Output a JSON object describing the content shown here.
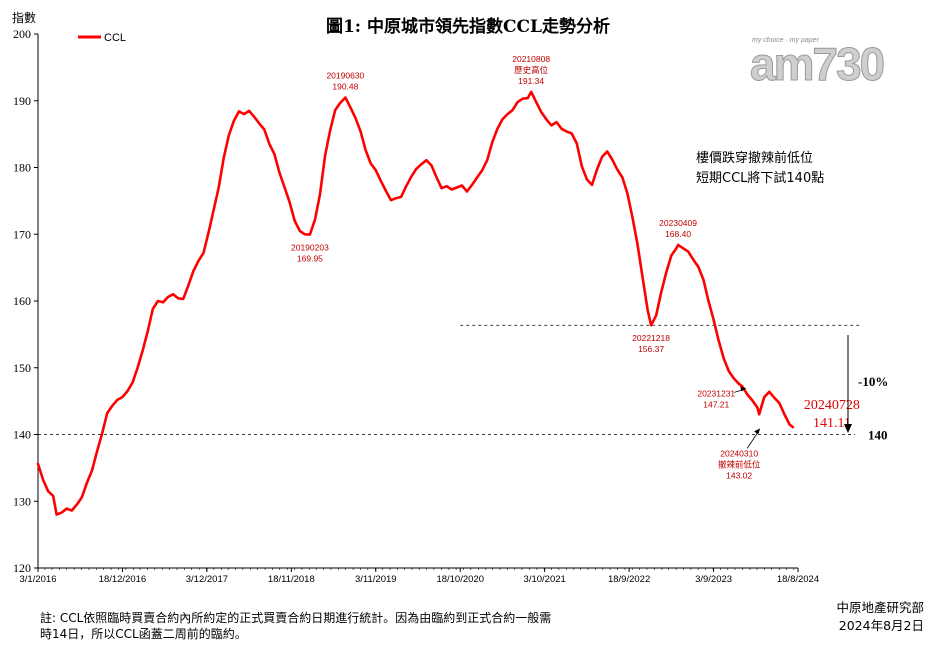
{
  "chart_data": {
    "type": "line",
    "title": "圖1: 中原城市領先指數CCL走勢分析",
    "ylabel": "指數",
    "ylim": [
      120,
      200
    ],
    "yticks": [
      120,
      130,
      140,
      150,
      160,
      170,
      180,
      190,
      200
    ],
    "xlim": [
      "2016-01-03",
      "2024-08-18"
    ],
    "xticks": [
      {
        "date": "2016-01-03",
        "label": "3/1/2016"
      },
      {
        "date": "2016-12-18",
        "label": "18/12/2016"
      },
      {
        "date": "2017-12-03",
        "label": "3/12/2017"
      },
      {
        "date": "2018-11-18",
        "label": "18/11/2018"
      },
      {
        "date": "2019-11-03",
        "label": "3/11/2019"
      },
      {
        "date": "2020-10-18",
        "label": "18/10/2020"
      },
      {
        "date": "2021-10-03",
        "label": "3/10/2021"
      },
      {
        "date": "2022-09-18",
        "label": "18/9/2022"
      },
      {
        "date": "2023-09-03",
        "label": "3/9/2023"
      },
      {
        "date": "2024-08-18",
        "label": "18/8/2024"
      }
    ],
    "legend_position": "top-left",
    "grid": false,
    "series": [
      {
        "name": "CCL",
        "color": "#ff0000",
        "points": [
          [
            "2016-01-03",
            135.6
          ],
          [
            "2016-01-24",
            133.2
          ],
          [
            "2016-02-14",
            131.5
          ],
          [
            "2016-03-06",
            130.8
          ],
          [
            "2016-03-20",
            128.0
          ],
          [
            "2016-04-10",
            128.3
          ],
          [
            "2016-05-01",
            128.9
          ],
          [
            "2016-05-22",
            128.6
          ],
          [
            "2016-06-12",
            129.5
          ],
          [
            "2016-07-03",
            130.6
          ],
          [
            "2016-07-24",
            132.8
          ],
          [
            "2016-08-14",
            134.6
          ],
          [
            "2016-09-04",
            137.5
          ],
          [
            "2016-09-25",
            140.2
          ],
          [
            "2016-10-16",
            143.2
          ],
          [
            "2016-11-06",
            144.3
          ],
          [
            "2016-11-27",
            145.2
          ],
          [
            "2016-12-18",
            145.6
          ],
          [
            "2017-01-08",
            146.5
          ],
          [
            "2017-01-29",
            147.8
          ],
          [
            "2017-02-19",
            150.0
          ],
          [
            "2017-03-12",
            152.6
          ],
          [
            "2017-04-02",
            155.5
          ],
          [
            "2017-04-23",
            158.8
          ],
          [
            "2017-05-14",
            160.0
          ],
          [
            "2017-06-04",
            159.8
          ],
          [
            "2017-06-25",
            160.6
          ],
          [
            "2017-07-16",
            161.0
          ],
          [
            "2017-08-06",
            160.4
          ],
          [
            "2017-08-27",
            160.3
          ],
          [
            "2017-09-17",
            162.3
          ],
          [
            "2017-10-08",
            164.5
          ],
          [
            "2017-10-29",
            166.0
          ],
          [
            "2017-11-19",
            167.2
          ],
          [
            "2017-12-10",
            170.3
          ],
          [
            "2017-12-31",
            173.6
          ],
          [
            "2018-01-21",
            177.0
          ],
          [
            "2018-02-11",
            181.5
          ],
          [
            "2018-03-04",
            184.8
          ],
          [
            "2018-03-25",
            187.0
          ],
          [
            "2018-04-15",
            188.4
          ],
          [
            "2018-05-06",
            188.0
          ],
          [
            "2018-05-27",
            188.5
          ],
          [
            "2018-06-17",
            187.6
          ],
          [
            "2018-07-08",
            186.6
          ],
          [
            "2018-07-29",
            185.7
          ],
          [
            "2018-08-19",
            183.5
          ],
          [
            "2018-09-09",
            182.0
          ],
          [
            "2018-09-30",
            179.2
          ],
          [
            "2018-10-21",
            177.0
          ],
          [
            "2018-11-11",
            174.8
          ],
          [
            "2018-12-02",
            172.0
          ],
          [
            "2018-12-23",
            170.5
          ],
          [
            "2019-01-13",
            170.0
          ],
          [
            "2019-02-03",
            169.95
          ],
          [
            "2019-02-24",
            172.2
          ],
          [
            "2019-03-17",
            176.0
          ],
          [
            "2019-04-07",
            181.8
          ],
          [
            "2019-04-28",
            185.6
          ],
          [
            "2019-05-19",
            188.6
          ],
          [
            "2019-06-09",
            189.7
          ],
          [
            "2019-06-30",
            190.48
          ],
          [
            "2019-07-21",
            189.0
          ],
          [
            "2019-08-11",
            187.4
          ],
          [
            "2019-09-01",
            185.4
          ],
          [
            "2019-09-22",
            182.6
          ],
          [
            "2019-10-13",
            180.6
          ],
          [
            "2019-11-03",
            179.6
          ],
          [
            "2019-11-24",
            178.0
          ],
          [
            "2019-12-15",
            176.5
          ],
          [
            "2020-01-05",
            175.1
          ],
          [
            "2020-01-26",
            175.4
          ],
          [
            "2020-02-16",
            175.6
          ],
          [
            "2020-03-08",
            177.2
          ],
          [
            "2020-03-29",
            178.6
          ],
          [
            "2020-04-19",
            179.8
          ],
          [
            "2020-05-10",
            180.5
          ],
          [
            "2020-05-31",
            181.1
          ],
          [
            "2020-06-21",
            180.3
          ],
          [
            "2020-07-12",
            178.5
          ],
          [
            "2020-08-02",
            176.9
          ],
          [
            "2020-08-23",
            177.2
          ],
          [
            "2020-09-13",
            176.7
          ],
          [
            "2020-10-04",
            177.0
          ],
          [
            "2020-10-25",
            177.3
          ],
          [
            "2020-11-15",
            176.4
          ],
          [
            "2020-12-06",
            177.4
          ],
          [
            "2020-12-27",
            178.5
          ],
          [
            "2021-01-17",
            179.6
          ],
          [
            "2021-02-07",
            181.1
          ],
          [
            "2021-02-28",
            183.8
          ],
          [
            "2021-03-21",
            185.8
          ],
          [
            "2021-04-11",
            187.2
          ],
          [
            "2021-05-02",
            188.0
          ],
          [
            "2021-05-23",
            188.6
          ],
          [
            "2021-06-13",
            189.8
          ],
          [
            "2021-07-04",
            190.3
          ],
          [
            "2021-07-25",
            190.4
          ],
          [
            "2021-08-08",
            191.34
          ],
          [
            "2021-08-29",
            189.8
          ],
          [
            "2021-09-19",
            188.3
          ],
          [
            "2021-10-10",
            187.2
          ],
          [
            "2021-10-31",
            186.3
          ],
          [
            "2021-11-21",
            186.8
          ],
          [
            "2021-12-12",
            185.8
          ],
          [
            "2022-01-02",
            185.4
          ],
          [
            "2022-01-23",
            185.1
          ],
          [
            "2022-02-13",
            183.6
          ],
          [
            "2022-03-06",
            180.2
          ],
          [
            "2022-03-27",
            178.2
          ],
          [
            "2022-04-17",
            177.4
          ],
          [
            "2022-05-08",
            179.7
          ],
          [
            "2022-05-29",
            181.6
          ],
          [
            "2022-06-19",
            182.4
          ],
          [
            "2022-07-10",
            181.2
          ],
          [
            "2022-07-31",
            179.7
          ],
          [
            "2022-08-21",
            178.5
          ],
          [
            "2022-09-11",
            176.1
          ],
          [
            "2022-10-02",
            172.5
          ],
          [
            "2022-10-23",
            168.4
          ],
          [
            "2022-11-13",
            163.5
          ],
          [
            "2022-12-04",
            158.6
          ],
          [
            "2022-12-18",
            156.37
          ],
          [
            "2023-01-08",
            157.8
          ],
          [
            "2023-01-29",
            161.3
          ],
          [
            "2023-02-19",
            164.3
          ],
          [
            "2023-03-12",
            166.8
          ],
          [
            "2023-04-02",
            167.9
          ],
          [
            "2023-04-09",
            168.4
          ],
          [
            "2023-04-30",
            167.9
          ],
          [
            "2023-05-21",
            167.4
          ],
          [
            "2023-06-11",
            166.2
          ],
          [
            "2023-07-02",
            165.1
          ],
          [
            "2023-07-23",
            163.2
          ],
          [
            "2023-08-13",
            160.0
          ],
          [
            "2023-09-03",
            157.2
          ],
          [
            "2023-09-24",
            154.1
          ],
          [
            "2023-10-15",
            151.4
          ],
          [
            "2023-11-05",
            149.5
          ],
          [
            "2023-11-26",
            148.4
          ],
          [
            "2023-12-17",
            147.6
          ],
          [
            "2023-12-31",
            147.21
          ],
          [
            "2024-01-21",
            146.0
          ],
          [
            "2024-02-11",
            145.1
          ],
          [
            "2024-03-03",
            144.0
          ],
          [
            "2024-03-10",
            143.02
          ],
          [
            "2024-03-31",
            145.6
          ],
          [
            "2024-04-21",
            146.4
          ],
          [
            "2024-05-12",
            145.5
          ],
          [
            "2024-06-02",
            144.7
          ],
          [
            "2024-06-23",
            143.0
          ],
          [
            "2024-07-14",
            141.5
          ],
          [
            "2024-07-28",
            141.11
          ]
        ]
      }
    ],
    "reference_lines": [
      {
        "value": 156.37,
        "from": "2020-10-18"
      },
      {
        "value": 140,
        "label": "140"
      }
    ],
    "annotations": [
      {
        "date": "2019-02-03",
        "value": 169.95,
        "lines": [
          "20190203",
          "169.95"
        ],
        "place": "below"
      },
      {
        "date": "2019-06-30",
        "value": 190.48,
        "lines": [
          "20190630",
          "190.48"
        ],
        "place": "above"
      },
      {
        "date": "2021-08-08",
        "value": 191.34,
        "lines": [
          "20210808",
          "歷史高位",
          "191.34"
        ],
        "place": "above"
      },
      {
        "date": "2022-12-18",
        "value": 156.37,
        "lines": [
          "20221218",
          "156.37"
        ],
        "place": "below"
      },
      {
        "date": "2023-04-09",
        "value": 168.4,
        "lines": [
          "20230409",
          "168.40"
        ],
        "place": "above"
      },
      {
        "date": "2023-12-31",
        "value": 147.21,
        "lines": [
          "20231231",
          "147.21"
        ],
        "place": "left-arrow"
      },
      {
        "date": "2024-03-10",
        "value": 143.02,
        "lines": [
          "20240310",
          "撤辣前低位",
          "143.02"
        ],
        "place": "below-arrow"
      },
      {
        "date": "2024-07-28",
        "value": 141.11,
        "lines": [
          "20240728",
          "141.11"
        ],
        "place": "right-big"
      }
    ],
    "side_note": [
      "樓價跌穿撤辣前低位",
      "短期CCL將下試140點"
    ],
    "drop_label": "-10%"
  },
  "footnote": {
    "line1": "註: CCL依照臨時買賣合約內所約定的正式買賣合約日期進行統計。因為由臨約到正式合約一般需",
    "line2": "時14日，所以CCL函蓋二周前的臨約。"
  },
  "source": {
    "org": "中原地產研究部",
    "date": "2024年8月2日"
  },
  "logo": {
    "text": "am730",
    "tagline": "my choice · my paper"
  }
}
